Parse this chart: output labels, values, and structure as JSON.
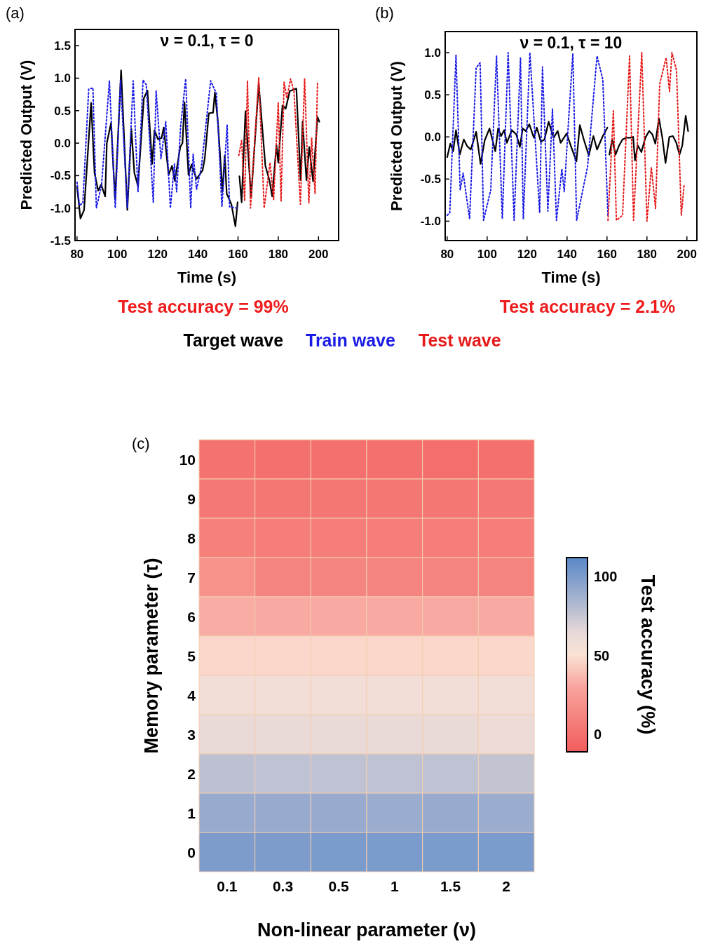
{
  "chart_data": [
    {
      "type": "line",
      "title": "ν = 0.1, τ = 0",
      "xlabel": "Time (s)",
      "ylabel": "Predicted Output (V)",
      "annotations": [
        "(a)",
        "Test accuracy = 99%"
      ],
      "legend": "bottom",
      "xlim": [
        79,
        210
      ],
      "ylim": [
        -1.5,
        1.75
      ],
      "xticks": [
        80,
        100,
        120,
        140,
        160,
        180,
        200
      ],
      "yticks": [
        {
          "value": -1.5,
          "label": "-1.5"
        },
        {
          "value": -1,
          "label": "-1.0"
        },
        {
          "value": -0.5,
          "label": "-0.5"
        },
        {
          "value": 0,
          "label": "0.0"
        },
        {
          "value": 0.5,
          "label": "0.5"
        },
        {
          "value": 1,
          "label": "1.0"
        },
        {
          "value": 1.5,
          "label": "1.5"
        }
      ],
      "series": [
        {
          "name": "Target wave",
          "color": "#000000",
          "line_style": "solid",
          "x": [
            80,
            81.7,
            83.5,
            87,
            88.7,
            90.5,
            92,
            94,
            94.8,
            96.9,
            98.9,
            101.9,
            105,
            107,
            108.5,
            110.3,
            113.2,
            115,
            117.3,
            118.5,
            120.2,
            122,
            123.1,
            125.5,
            127.2,
            128.6,
            131.3,
            132.4,
            133.4,
            135.4,
            136.9,
            139.4,
            142.4,
            143.5,
            145.5,
            147.6,
            148.5,
            150,
            152.3,
            153.4,
            154.4,
            156.7,
            158.7,
            159.8,
            160.2,
            160.7,
            161.8,
            163.7,
            166.5,
            170.3,
            173.6,
            175.6,
            177,
            179.1,
            180,
            182.1,
            183.7,
            185.7,
            189,
            191.1,
            192.1,
            194,
            195.4,
            197.3,
            199.5,
            200.4
          ],
          "values": [
            -0.67,
            -1.16,
            -1.03,
            0.62,
            -0.46,
            -0.73,
            -0.64,
            -0.82,
            0,
            0.31,
            -0.87,
            1.12,
            -1.03,
            0.22,
            -0.46,
            -0.66,
            0.69,
            0.81,
            -0.32,
            0.2,
            0.06,
            0.08,
            0.24,
            -0.49,
            -0.35,
            -0.58,
            -0.06,
            0,
            0.63,
            -0.49,
            -0.33,
            -0.55,
            -0.42,
            -0.23,
            0.46,
            0.47,
            0.78,
            0.33,
            -0.75,
            -0.19,
            -0.78,
            -0.94,
            -1.28,
            -0.91,
            null,
            -0.51,
            -0.91,
            0.49,
            -0.84,
            0.91,
            -0.35,
            -0.57,
            -0.82,
            -0.03,
            -0.3,
            0.58,
            0.53,
            0.8,
            0.84,
            -0.57,
            0.33,
            -0.57,
            -0.06,
            -0.59,
            0.4,
            0.33
          ]
        },
        {
          "name": "Train wave",
          "color": "#1a1ae6",
          "line_style": "dotted",
          "x": [
            80,
            81.2,
            82.9,
            85.8,
            87.9,
            89.6,
            92.2,
            96.1,
            99,
            101.6,
            105,
            107.9,
            110.3,
            112.8,
            114.4,
            117.9,
            119.3,
            121.7,
            124.1,
            126.4,
            128.4,
            129.5,
            131.5,
            134,
            136.5,
            137.7,
            139.4,
            141.8,
            146.4,
            149.3,
            152,
            154.6,
            155.8,
            159.3
          ],
          "values": [
            -0.6,
            -0.96,
            -0.92,
            0.83,
            0.85,
            -1,
            -0.64,
            0.96,
            -1,
            0.97,
            -1,
            0.96,
            -0.75,
            0.97,
            0.9,
            -0.91,
            0.81,
            -0.24,
            0.33,
            -1,
            -0.32,
            -0.75,
            0.26,
            0.99,
            -1,
            -0.17,
            -0.71,
            -0.37,
            0.96,
            0.76,
            -0.98,
            0.28,
            -0.98,
            -1
          ]
        },
        {
          "name": "Test wave",
          "color": "#e61a1a",
          "line_style": "dotted",
          "x": [
            160.4,
            161.8,
            163.3,
            164.7,
            166.2,
            170.3,
            173,
            175.9,
            177.7,
            180,
            181.4,
            182.9,
            184.3,
            186.1,
            187.8,
            191,
            193.1,
            195.2,
            196.6,
            198.3,
            199.5
          ],
          "values": [
            -0.19,
            0.04,
            -0.89,
            0.96,
            -1,
            1.01,
            -1,
            -0.3,
            -0.87,
            0.62,
            -0.89,
            0.94,
            0.69,
            0.99,
            0.8,
            -0.94,
            0.99,
            -0.92,
            0.08,
            -0.78,
            0.94
          ]
        }
      ]
    },
    {
      "type": "line",
      "title": "ν = 0.1, τ = 10",
      "xlabel": "Time (s)",
      "ylabel": "Predicted Output (V)",
      "annotations": [
        "(b)",
        "Test accuracy = 2.1%"
      ],
      "xlim": [
        79,
        205
      ],
      "ylim": [
        -1.23,
        1.25
      ],
      "xticks": [
        80,
        100,
        120,
        140,
        160,
        180,
        200
      ],
      "yticks": [
        {
          "value": -1,
          "label": "-1.0"
        },
        {
          "value": -0.5,
          "label": "-0.5"
        },
        {
          "value": 0,
          "label": "0.0"
        },
        {
          "value": 0.5,
          "label": "0.5"
        },
        {
          "value": 1,
          "label": "1.0"
        }
      ],
      "series": [
        {
          "color": "#000000",
          "line_style": "solid",
          "x": [
            80,
            81.6,
            83,
            84.4,
            86.3,
            88.3,
            90,
            91.8,
            94.5,
            96.7,
            98.8,
            101.2,
            104.1,
            105.5,
            107,
            108.5,
            109.9,
            112.3,
            114.6,
            116.4,
            117.8,
            119.3,
            121.1,
            123.4,
            124.9,
            126.9,
            128.7,
            130.8,
            133.3,
            135.3,
            136.8,
            139.8,
            142.1,
            144.7,
            146.4,
            148.5,
            150.9,
            153.2,
            155,
            157.9,
            160.2,
            160.7,
            161.2,
            162.6,
            164.3,
            166.1,
            167.8,
            169.6,
            171.7,
            173.1,
            174,
            175.4,
            177.2,
            179.2,
            181.1,
            182.7,
            184.2,
            186,
            187.7,
            189.3,
            191.2,
            193,
            194.7,
            196.3,
            197.7,
            199.4,
            200.6
          ],
          "values": [
            -0.24,
            -0.08,
            -0.17,
            0.08,
            -0.21,
            -0.03,
            -0.11,
            -0.15,
            0.06,
            -0.32,
            -0.04,
            0.1,
            -0.17,
            0.1,
            0.01,
            0.08,
            -0.07,
            0.08,
            0.03,
            -0.12,
            0.1,
            0.07,
            0.15,
            -0.01,
            0.11,
            -0.06,
            -0.03,
            0.18,
            -0.01,
            0.07,
            -0.07,
            0.04,
            -0.12,
            -0.29,
            0.14,
            -0.04,
            -0.22,
            0.01,
            -0.15,
            0.01,
            0.11,
            null,
            -0.21,
            -0.03,
            -0.21,
            -0.1,
            -0.03,
            -0.01,
            -0.01,
            0,
            -0.28,
            -0.1,
            -0.18,
            -0.01,
            0.07,
            0.03,
            -0.08,
            0.22,
            -0.01,
            -0.31,
            0,
            0.01,
            -0.07,
            -0.21,
            -0.1,
            0.25,
            0.07
          ]
        },
        {
          "color": "#1a1ae6",
          "line_style": "dotted",
          "x": [
            80,
            81.3,
            84.4,
            86.5,
            88,
            91.2,
            94.5,
            96.5,
            98.2,
            101.8,
            104.7,
            107.6,
            110.5,
            113.5,
            116.7,
            118.1,
            121.4,
            126.3,
            127.7,
            130.4,
            132.7,
            134.7,
            137.4,
            138.6,
            140.9,
            142.9,
            144.8,
            150.3,
            155,
            157.9,
            160.5
          ],
          "values": [
            -0.93,
            -0.9,
            0.97,
            -0.63,
            -0.43,
            -0.97,
            0.82,
            0.88,
            -0.99,
            -0.63,
            0.96,
            -0.97,
            1,
            -0.99,
            0.94,
            -0.97,
            1,
            -0.9,
            0.83,
            -0.88,
            0.33,
            -0.99,
            -0.38,
            -0.65,
            0.25,
            0.99,
            -0.99,
            -0.35,
            0.96,
            0.68,
            -0.94
          ]
        },
        {
          "color": "#e61a1a",
          "line_style": "dotted",
          "x": [
            160.5,
            163.2,
            164.7,
            167.8,
            171.3,
            173.3,
            177.4,
            180,
            182.2,
            184.3,
            186.4,
            189.6,
            191.3,
            192.5,
            194.8,
            197.2,
            198.6
          ],
          "values": [
            -0.99,
            0.31,
            -0.99,
            -0.93,
            0.96,
            -0.99,
            1,
            -1,
            -0.36,
            -0.85,
            0.63,
            0.94,
            0.54,
            1,
            0.79,
            -0.93,
            -0.57
          ]
        }
      ]
    },
    {
      "type": "heatmap",
      "xlabel": "Non-linear parameter (ν)",
      "ylabel": "Memory parameter (τ)",
      "clabel": "Test accuracy (%)",
      "annotations": [
        "(c)"
      ],
      "categories": [
        "0.1",
        "0.3",
        "0.5",
        "1",
        "1.5",
        "2"
      ],
      "y_categories": [
        "10",
        "9",
        "8",
        "7",
        "6",
        "5",
        "4",
        "3",
        "2",
        "1",
        "0"
      ],
      "clim": [
        -10,
        111
      ],
      "cticks": [
        0,
        50,
        100
      ],
      "cells": [
        [
          2.1,
          1,
          1,
          1,
          0,
          1
        ],
        [
          6,
          5,
          5,
          5,
          5,
          6
        ],
        [
          10,
          9,
          9,
          9,
          9,
          9
        ],
        [
          20,
          12,
          13,
          12,
          12,
          12
        ],
        [
          33,
          32,
          32,
          32,
          32,
          32
        ],
        [
          47,
          47,
          47,
          47,
          47,
          47
        ],
        [
          56,
          56,
          56,
          56,
          56,
          56
        ],
        [
          63,
          63,
          63,
          63,
          63,
          60
        ],
        [
          78,
          77,
          77,
          77,
          77,
          76
        ],
        [
          90,
          90,
          90,
          89,
          90,
          89
        ],
        [
          99,
          99,
          100,
          100,
          100,
          100
        ]
      ]
    }
  ]
}
